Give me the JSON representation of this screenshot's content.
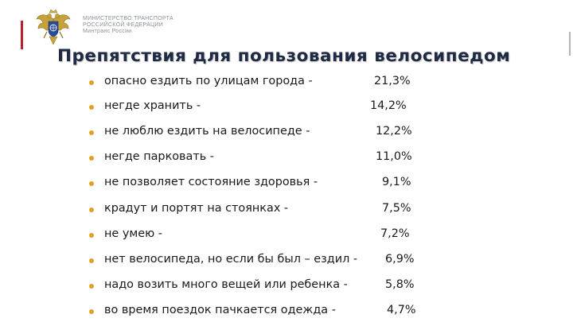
{
  "header": {
    "ministry_line1": "МИНИСТЕРСТВО ТРАНСПОРТА",
    "ministry_line2": "РОССИЙСКОЙ ФЕДЕРАЦИИ",
    "ministry_line3": "Минтранс России",
    "emblem_icon": "coat-of-arms-emblem",
    "accent_color": "#b82128"
  },
  "title": "Препятствия для пользования велосипедом",
  "bullet_color": "#e0a12a",
  "items": [
    {
      "label": "опасно ездить по улицам города -",
      "value": "21,3%"
    },
    {
      "label": "негде хранить -",
      "value": "14,2%"
    },
    {
      "label": "не люблю ездить на велосипеде -",
      "value": "12,2%"
    },
    {
      "label": "негде парковать -",
      "value": "11,0%"
    },
    {
      "label": "не позволяет состояние здоровья -",
      "value": "9,1%"
    },
    {
      "label": "крадут и портят на стоянках -",
      "value": "7,5%"
    },
    {
      "label": "не умею -",
      "value": "7,2%"
    },
    {
      "label": "нет велосипеда, но если бы был – ездил -",
      "value": "6,9%"
    },
    {
      "label": "надо возить много вещей или  ребенка -",
      "value": "5,8%"
    },
    {
      "label": " во время поездок пачкается одежда -",
      "value": "4,7%"
    }
  ]
}
